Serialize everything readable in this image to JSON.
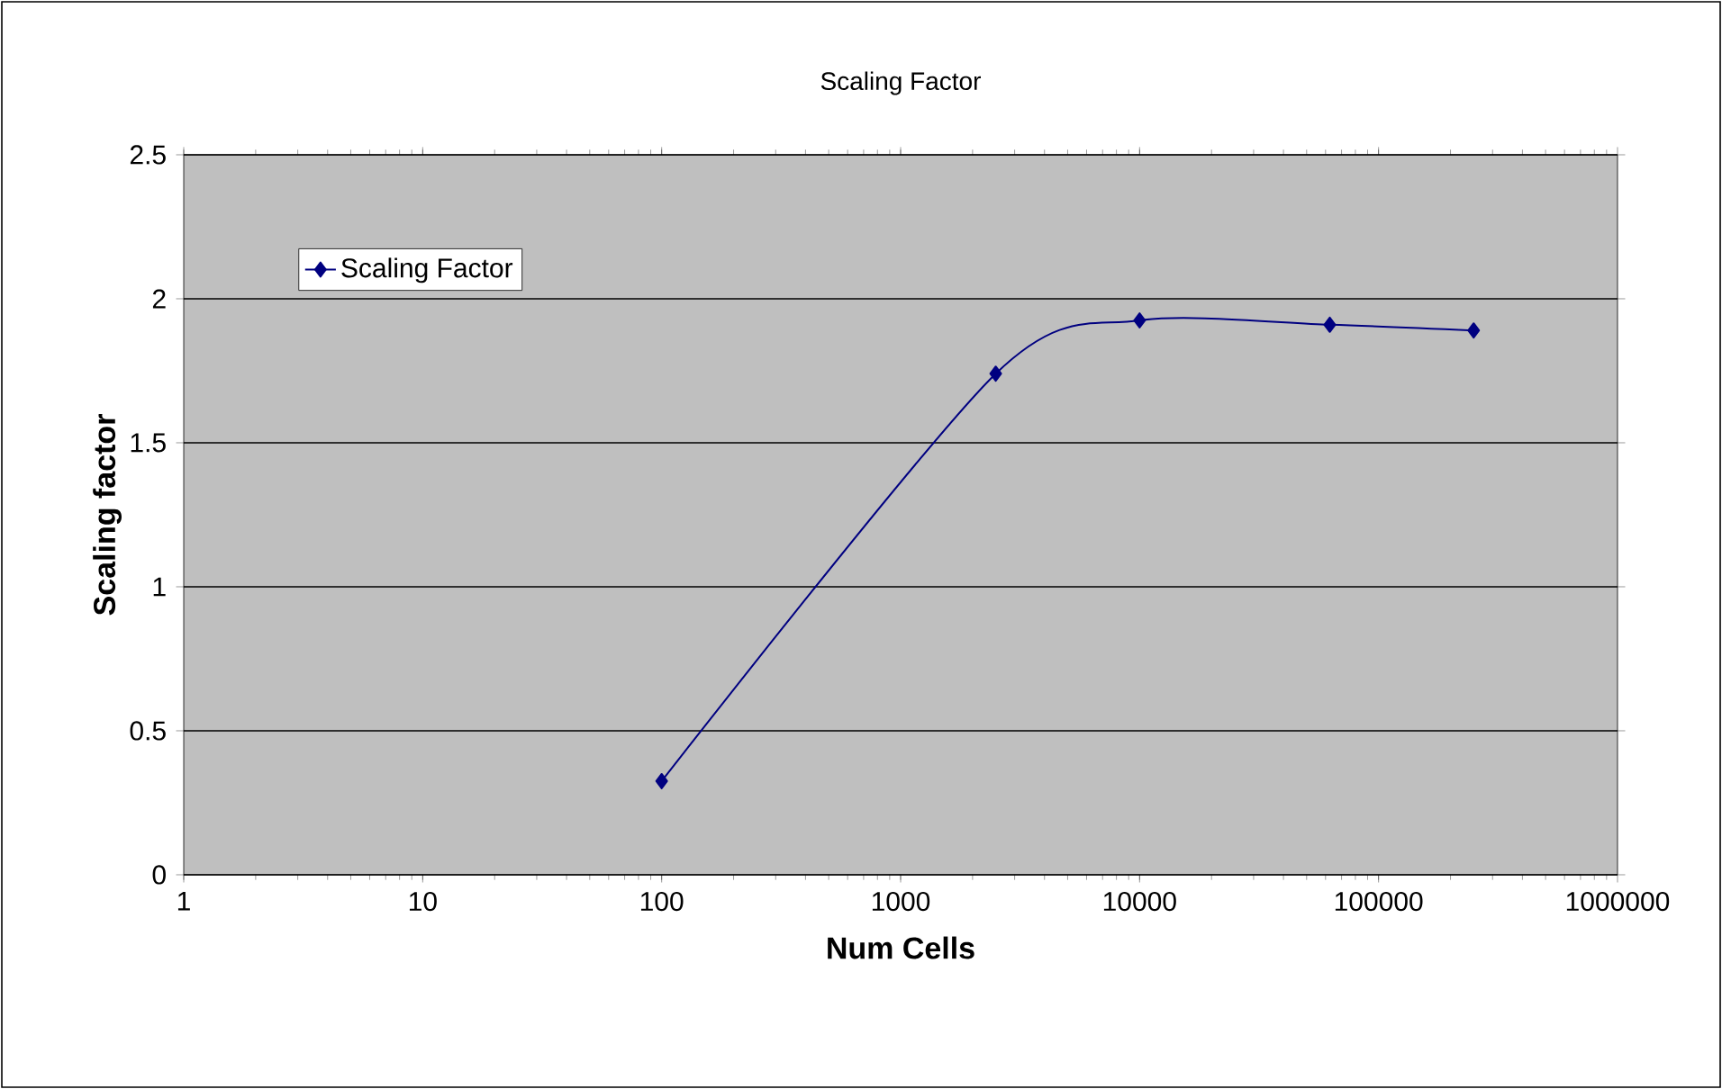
{
  "chart_data": {
    "type": "line",
    "title": "Scaling Factor",
    "xlabel": "Num Cells",
    "ylabel": "Scaling factor",
    "x": [
      100,
      2500,
      10000,
      62500,
      250000
    ],
    "series": [
      {
        "name": "Scaling Factor",
        "color": "#000080",
        "values": [
          0.325,
          1.74,
          1.925,
          1.91,
          1.89
        ]
      }
    ],
    "log": "x",
    "xlim": [
      1,
      1000000
    ],
    "xticks": [
      1,
      10,
      100,
      1000,
      10000,
      100000,
      1000000
    ],
    "ylim": [
      0,
      2.5
    ],
    "yticks": [
      0,
      0.5,
      1,
      1.5,
      2,
      2.5
    ],
    "grid": "y",
    "legend": "top left",
    "marker": "diamond",
    "line_style": "solid"
  }
}
